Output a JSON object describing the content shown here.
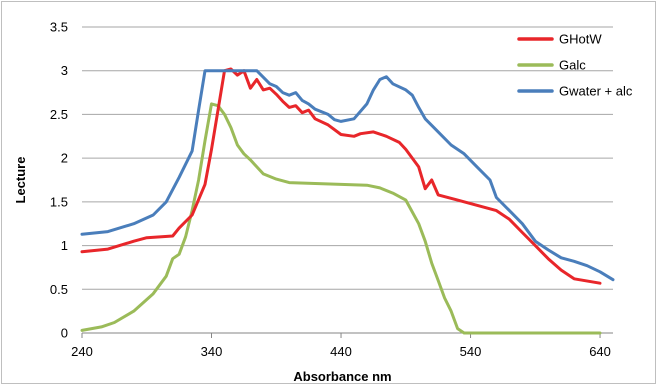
{
  "chart_data": {
    "type": "line",
    "title": "",
    "xlabel": "Absorbance nm",
    "ylabel": "Lecture",
    "xlim": [
      240,
      650
    ],
    "ylim": [
      0,
      3.5
    ],
    "x_ticks": [
      240,
      340,
      440,
      540,
      640
    ],
    "y_ticks": [
      0,
      0.5,
      1,
      1.5,
      2,
      2.5,
      3,
      3.5
    ],
    "x_tick_labels": [
      "240",
      "340",
      "440",
      "540",
      "640"
    ],
    "y_tick_labels": [
      "0",
      "0.5",
      "1",
      "1.5",
      "2",
      "2.5",
      "3",
      "3.5"
    ],
    "grid": "horizontal",
    "legend": "top-right",
    "series": [
      {
        "name": "GHotW",
        "color": "#e8262a",
        "points": [
          [
            240,
            0.93
          ],
          [
            260,
            0.96
          ],
          [
            280,
            1.05
          ],
          [
            290,
            1.09
          ],
          [
            310,
            1.11
          ],
          [
            315,
            1.2
          ],
          [
            325,
            1.35
          ],
          [
            335,
            1.7
          ],
          [
            340,
            2.1
          ],
          [
            345,
            2.55
          ],
          [
            350,
            3.0
          ],
          [
            355,
            3.02
          ],
          [
            360,
            2.95
          ],
          [
            365,
            3.0
          ],
          [
            370,
            2.8
          ],
          [
            375,
            2.9
          ],
          [
            380,
            2.78
          ],
          [
            385,
            2.8
          ],
          [
            390,
            2.73
          ],
          [
            395,
            2.65
          ],
          [
            400,
            2.58
          ],
          [
            405,
            2.6
          ],
          [
            410,
            2.52
          ],
          [
            415,
            2.55
          ],
          [
            420,
            2.45
          ],
          [
            430,
            2.38
          ],
          [
            440,
            2.27
          ],
          [
            450,
            2.25
          ],
          [
            455,
            2.28
          ],
          [
            465,
            2.3
          ],
          [
            475,
            2.25
          ],
          [
            485,
            2.18
          ],
          [
            490,
            2.1
          ],
          [
            500,
            1.9
          ],
          [
            505,
            1.65
          ],
          [
            510,
            1.75
          ],
          [
            515,
            1.58
          ],
          [
            530,
            1.52
          ],
          [
            540,
            1.48
          ],
          [
            560,
            1.4
          ],
          [
            570,
            1.3
          ],
          [
            580,
            1.15
          ],
          [
            590,
            1.0
          ],
          [
            600,
            0.85
          ],
          [
            610,
            0.72
          ],
          [
            620,
            0.62
          ],
          [
            640,
            0.57
          ]
        ]
      },
      {
        "name": "Galc",
        "color": "#9bbb59",
        "points": [
          [
            240,
            0.03
          ],
          [
            255,
            0.07
          ],
          [
            265,
            0.12
          ],
          [
            280,
            0.25
          ],
          [
            295,
            0.45
          ],
          [
            305,
            0.65
          ],
          [
            310,
            0.85
          ],
          [
            315,
            0.9
          ],
          [
            320,
            1.1
          ],
          [
            325,
            1.4
          ],
          [
            330,
            1.75
          ],
          [
            335,
            2.2
          ],
          [
            340,
            2.62
          ],
          [
            345,
            2.6
          ],
          [
            350,
            2.5
          ],
          [
            355,
            2.35
          ],
          [
            360,
            2.15
          ],
          [
            365,
            2.05
          ],
          [
            370,
            1.98
          ],
          [
            380,
            1.82
          ],
          [
            390,
            1.76
          ],
          [
            400,
            1.72
          ],
          [
            420,
            1.71
          ],
          [
            440,
            1.7
          ],
          [
            460,
            1.69
          ],
          [
            470,
            1.66
          ],
          [
            480,
            1.6
          ],
          [
            490,
            1.52
          ],
          [
            500,
            1.25
          ],
          [
            505,
            1.05
          ],
          [
            510,
            0.8
          ],
          [
            515,
            0.6
          ],
          [
            520,
            0.4
          ],
          [
            525,
            0.25
          ],
          [
            530,
            0.05
          ],
          [
            535,
            0.0
          ],
          [
            545,
            0.0
          ],
          [
            640,
            0.0
          ]
        ]
      },
      {
        "name": "Gwater + alc",
        "color": "#4a7ebb",
        "points": [
          [
            240,
            1.13
          ],
          [
            260,
            1.16
          ],
          [
            280,
            1.25
          ],
          [
            295,
            1.35
          ],
          [
            305,
            1.5
          ],
          [
            315,
            1.78
          ],
          [
            325,
            2.08
          ],
          [
            330,
            2.55
          ],
          [
            335,
            3.0
          ],
          [
            345,
            3.0
          ],
          [
            355,
            3.0
          ],
          [
            365,
            3.0
          ],
          [
            375,
            3.0
          ],
          [
            385,
            2.85
          ],
          [
            390,
            2.82
          ],
          [
            395,
            2.75
          ],
          [
            400,
            2.72
          ],
          [
            405,
            2.75
          ],
          [
            410,
            2.66
          ],
          [
            415,
            2.62
          ],
          [
            420,
            2.56
          ],
          [
            430,
            2.5
          ],
          [
            435,
            2.44
          ],
          [
            440,
            2.42
          ],
          [
            450,
            2.45
          ],
          [
            460,
            2.62
          ],
          [
            465,
            2.78
          ],
          [
            470,
            2.9
          ],
          [
            475,
            2.93
          ],
          [
            480,
            2.85
          ],
          [
            490,
            2.78
          ],
          [
            495,
            2.72
          ],
          [
            500,
            2.58
          ],
          [
            505,
            2.45
          ],
          [
            515,
            2.3
          ],
          [
            525,
            2.15
          ],
          [
            535,
            2.05
          ],
          [
            545,
            1.9
          ],
          [
            555,
            1.75
          ],
          [
            560,
            1.55
          ],
          [
            570,
            1.4
          ],
          [
            580,
            1.25
          ],
          [
            590,
            1.05
          ],
          [
            600,
            0.95
          ],
          [
            610,
            0.86
          ],
          [
            620,
            0.82
          ],
          [
            630,
            0.77
          ],
          [
            640,
            0.7
          ],
          [
            650,
            0.61
          ]
        ]
      }
    ]
  }
}
